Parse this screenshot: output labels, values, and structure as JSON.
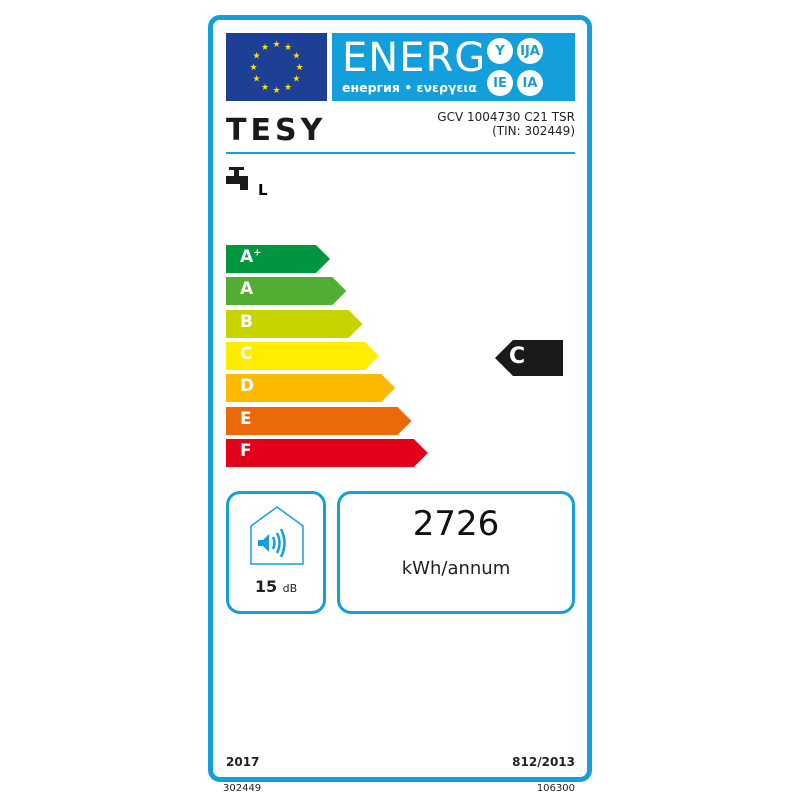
{
  "header": {
    "energy_word": "ENERG",
    "subtitle": "енергия • ενεργεια",
    "lang_badges": [
      "Y",
      "IJA",
      "IE",
      "IA"
    ],
    "colors": {
      "label_blue": "#139fdb",
      "eu_blue": "#1d3f94",
      "eu_star": "#ffdd00"
    }
  },
  "brand": "TESY",
  "model": {
    "name": "GCV 1004730 C21 TSR",
    "tin": "(TIN: 302449)"
  },
  "load_profile": {
    "icon": "water-tap-icon",
    "value": "L"
  },
  "scale": [
    {
      "label": "A",
      "sup": "+",
      "color": "#009640"
    },
    {
      "label": "A",
      "sup": "",
      "color": "#52ae32"
    },
    {
      "label": "B",
      "sup": "",
      "color": "#c8d400"
    },
    {
      "label": "C",
      "sup": "",
      "color": "#ffed00"
    },
    {
      "label": "D",
      "sup": "",
      "color": "#fbba00"
    },
    {
      "label": "E",
      "sup": "",
      "color": "#eb6909"
    },
    {
      "label": "F",
      "sup": "",
      "color": "#e2001a"
    }
  ],
  "rating": {
    "class": "C",
    "color": "#1a1a1a"
  },
  "noise": {
    "icon": "sound-house-icon",
    "value": "15",
    "unit": "dB"
  },
  "energy": {
    "value": "2726",
    "unit": "kWh/annum"
  },
  "footer": {
    "year": "2017",
    "regulation": "812/2013"
  },
  "below": {
    "left": "302449",
    "right": "106300"
  }
}
